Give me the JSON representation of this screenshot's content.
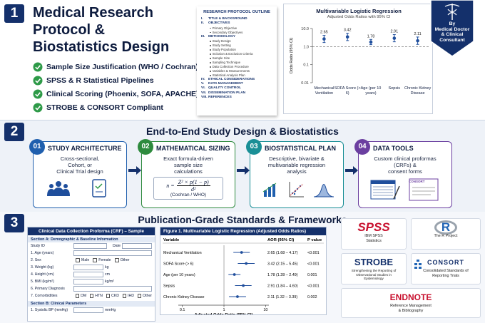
{
  "section1": {
    "number": "1",
    "title_lines": [
      "Medical Research",
      "Protocol &",
      "Biostatistics Design"
    ],
    "checklist": [
      "Sample Size Justification (WHO / Cochran)",
      "SPSS & R Statistical Pipelines",
      "Clinical Scoring (Phoenix, SOFA, APACHE)",
      "STROBE & CONSORT Compliant"
    ]
  },
  "outline": {
    "title": "RESEARCH PROTOCOL OUTLINE",
    "items": [
      {
        "num": "I.",
        "text": "TITLE & BACKGROUND",
        "sub": []
      },
      {
        "num": "II.",
        "text": "OBJECTIVES",
        "sub": [
          "Primary Objective",
          "Secondary Objectives"
        ]
      },
      {
        "num": "III.",
        "text": "METHODOLOGY",
        "sub": [
          "Study Design",
          "Study Setting",
          "Study Population",
          "Inclusion & Exclusion Criteria",
          "Sample Size",
          "Sampling Technique",
          "Data Collection Procedure",
          "Variables & Measurements",
          "Statistical Analysis Plan"
        ]
      },
      {
        "num": "IV.",
        "text": "ETHICAL CONSIDERATIONS",
        "sub": []
      },
      {
        "num": "V.",
        "text": "DATA MANAGEMENT",
        "sub": []
      },
      {
        "num": "VI.",
        "text": "QUALITY CONTROL",
        "sub": []
      },
      {
        "num": "VII.",
        "text": "DISSEMINATION PLAN",
        "sub": []
      },
      {
        "num": "VIII.",
        "text": "REFERENCES",
        "sub": []
      }
    ]
  },
  "or_chart": {
    "type": "errorbar",
    "title": "Multivariable Logistic Regression",
    "subtitle": "Adjusted Odds Ratios with 95% CI",
    "y_label": "Odds Ratio (95% CI)",
    "categories": [
      "Mechanical Ventilation",
      "SOFA Score (> 6)",
      "Age (per 10 years)",
      "Sepsis",
      "Chronic Kidney Disease"
    ],
    "values": [
      2.65,
      3.42,
      1.78,
      2.91,
      2.11
    ],
    "lower": [
      1.68,
      2.15,
      1.28,
      1.84,
      1.32
    ],
    "upper": [
      4.17,
      5.45,
      2.49,
      4.6,
      3.39
    ],
    "ylim": [
      0.01,
      10
    ],
    "yticks": [
      {
        "value": 10,
        "label": "10.0"
      },
      {
        "value": 1,
        "label": "1.0"
      },
      0.1,
      0.01
    ],
    "log_scale": true,
    "reference_line": 1,
    "color": "#1f4e9c"
  },
  "badge": {
    "lines": [
      "By",
      "Medical Doctor",
      "& Clinical",
      "Consultant"
    ]
  },
  "section2": {
    "number": "2",
    "title": "End-to-End Study Design & Biostatistics",
    "cards": [
      {
        "num": "01",
        "title": "STUDY ARCHITECTURE",
        "lines": [
          "Cross-sectional,",
          "Cohort, or",
          "Clinical Trial design"
        ]
      },
      {
        "num": "02",
        "title": "MATHEMATICAL SIZING",
        "lines": [
          "Exact formula-driven",
          "sample size",
          "calculations"
        ],
        "formula": {
          "lhs": "n =",
          "numerator": "Z² × p(1 − p)",
          "denominator": "d²",
          "source": "(Cochran / WHO)"
        }
      },
      {
        "num": "03",
        "title": "BIOSTATISTICAL PLAN",
        "lines": [
          "Descriptive, bivariate &",
          "multivariable regression",
          "analysis"
        ]
      },
      {
        "num": "04",
        "title": "DATA TOOLS",
        "lines": [
          "Custom clinical proformas",
          "(CRFs) &",
          "consent forms"
        ],
        "form_label": "CONSORT"
      }
    ]
  },
  "section3": {
    "number": "3",
    "title": "Publication-Grade Standards & Frameworks"
  },
  "crf": {
    "title": "Clinical Data Collection Proforma (CRF) – Sample",
    "sections": [
      {
        "heading": "Section A: Demographic & Baseline Information",
        "fields": [
          {
            "label": "Study ID",
            "extra": "Date"
          },
          {
            "label": "1. Age (years)"
          },
          {
            "label": "2. Sex",
            "options": [
              "Male",
              "Female",
              "Other"
            ]
          },
          {
            "label": "3. Weight (kg)",
            "unit": "kg"
          },
          {
            "label": "4. Height (cm)",
            "unit": "cm"
          },
          {
            "label": "5. BMI (kg/m²)",
            "unit": "kg/m²"
          },
          {
            "label": "6. Primary Diagnosis"
          },
          {
            "label": "7. Comorbidities",
            "options": [
              "DM",
              "HTN",
              "CKD",
              "IHD",
              "Other"
            ]
          }
        ]
      },
      {
        "heading": "Section B: Clinical Parameters",
        "fields": [
          {
            "label": "1. Systolic BP (mmHg)",
            "unit": "mmHg"
          }
        ]
      }
    ]
  },
  "forest_plot": {
    "type": "forest",
    "title": "Figure 1. Multivariable Logistic Regression (Adjusted Odds Ratios)",
    "columns": [
      "Variable",
      "AOR (95% CI)",
      "P value"
    ],
    "categories": [
      "Mechanical Ventilation",
      "SOFA Score (> 6)",
      "Age (per 10 years)",
      "Sepsis",
      "Chronic Kidney Disease"
    ],
    "values": [
      2.65,
      3.42,
      1.78,
      2.91,
      2.11
    ],
    "lower": [
      1.68,
      2.15,
      1.28,
      1.84,
      1.32
    ],
    "upper": [
      4.17,
      5.45,
      2.49,
      4.6,
      3.39
    ],
    "value_labels": [
      "2.65 (1.68 – 4.17)",
      "3.42 (2.15 – 5.45)",
      "1.78 (1.28 – 2.49)",
      "2.91 (1.84 – 4.60)",
      "2.11 (1.32 – 3.39)"
    ],
    "p_values": [
      "<0.001",
      "<0.001",
      "0.001",
      "<0.001",
      "0.002"
    ],
    "xlim": [
      0.08,
      12
    ],
    "xticks": [
      0.1,
      1,
      10
    ],
    "x_label": "Adjusted Odds Ratio (95% CI)",
    "log_scale": true,
    "reference_line": 1,
    "color": "#1f4e9c"
  },
  "logos": [
    {
      "mark": "SPSS",
      "caption": [
        "IBM SPSS",
        "Statistics"
      ]
    },
    {
      "mark": "R",
      "caption": [
        "The R Project"
      ]
    },
    {
      "mark": "STROBE",
      "caption": [
        "Strengthening the Reporting of",
        "Observational Studies in",
        "Epidemiology"
      ]
    },
    {
      "mark": "CONSORT",
      "caption": [
        "Consolidated Standards of",
        "Reporting Trials"
      ]
    },
    {
      "mark": "ENDNOTE",
      "caption": [
        "Reference Management",
        "& Bibliography"
      ]
    }
  ]
}
